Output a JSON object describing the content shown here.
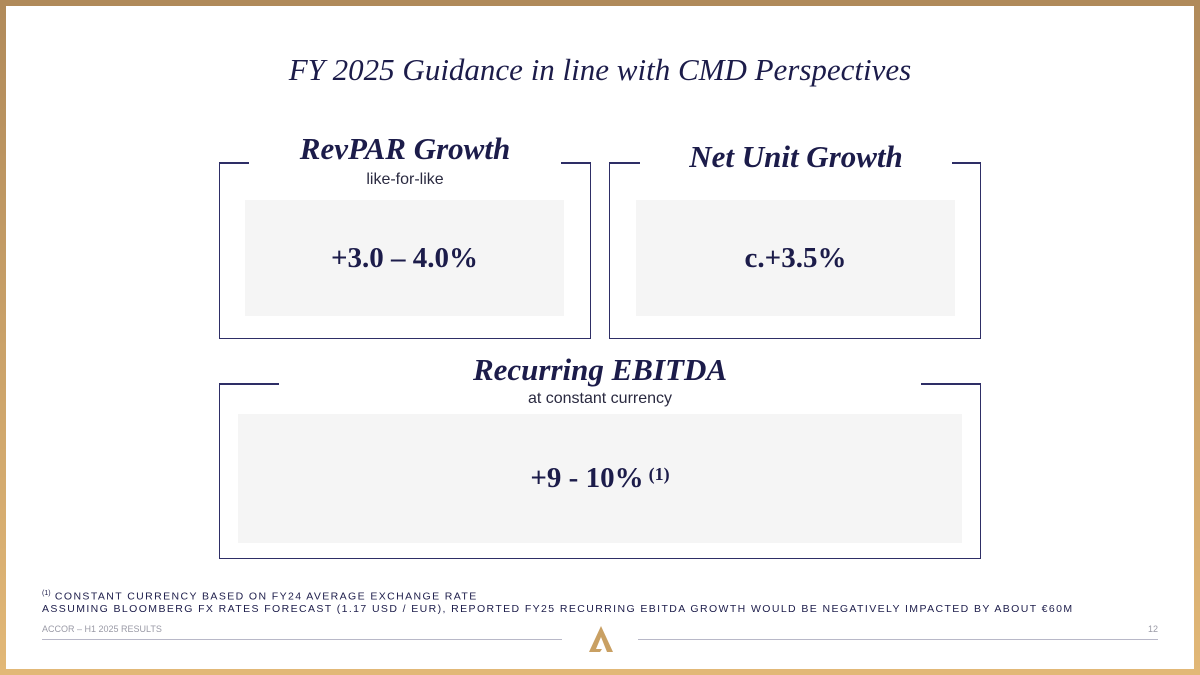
{
  "header": {
    "title": "FY 2025 Guidance in line with CMD Perspectives"
  },
  "boxes": [
    {
      "heading": "RevPAR Growth",
      "subheading": "like-for-like",
      "value": "+3.0 – 4.0%"
    },
    {
      "heading": "Net Unit Growth",
      "value": "c.+3.5%"
    },
    {
      "heading": "Recurring EBITDA",
      "subheading": "at constant currency",
      "value": "+9 - 10%",
      "value_note": "(1)"
    }
  ],
  "footnote": {
    "marker": "(1)",
    "lines": [
      "CONSTANT CURRENCY BASED ON FY24 AVERAGE EXCHANGE RATE",
      "ASSUMING BLOOMBERG FX RATES FORECAST (1.17 USD / EUR), REPORTED FY25 RECURRING EBITDA GROWTH WOULD BE NEGATIVELY IMPACTED BY ABOUT €60M"
    ]
  },
  "footer": {
    "left": "ACCOR – H1 2025 RESULTS",
    "page": "12"
  }
}
